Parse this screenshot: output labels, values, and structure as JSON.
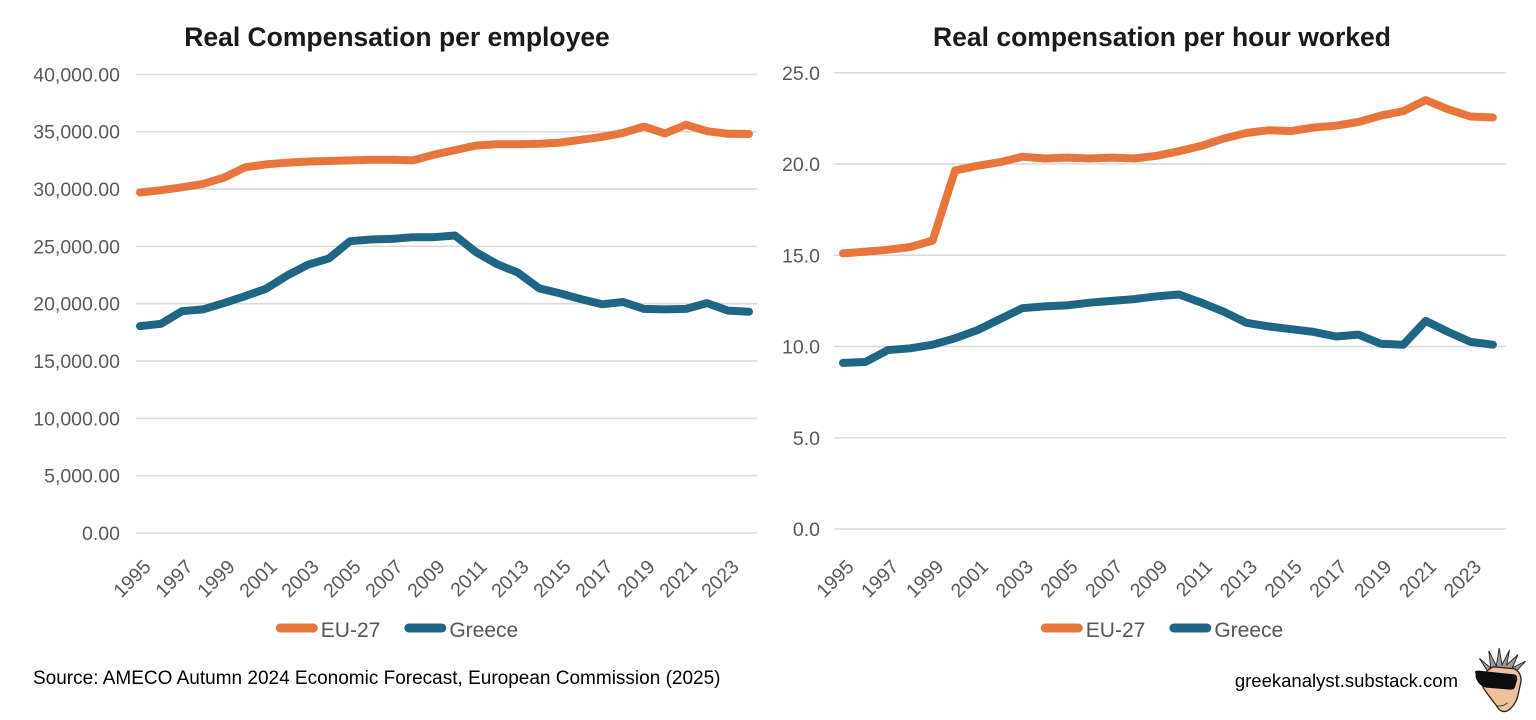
{
  "page": {
    "background": "#ffffff"
  },
  "colors": {
    "eu27": "#e8753b",
    "greece": "#1f6584",
    "gridline": "#d9d9d9",
    "axis_label": "#595959",
    "title": "#1a1a1a",
    "legend_label": "#565656"
  },
  "chart_data": [
    {
      "type": "line",
      "title": "Real Compensation per employee",
      "x": [
        1995,
        1996,
        1997,
        1998,
        1999,
        2000,
        2001,
        2002,
        2003,
        2004,
        2005,
        2006,
        2007,
        2008,
        2009,
        2010,
        2011,
        2012,
        2013,
        2014,
        2015,
        2016,
        2017,
        2018,
        2019,
        2020,
        2021,
        2022,
        2023,
        2024
      ],
      "x_tick_labels": [
        "1995",
        "1997",
        "1999",
        "2001",
        "2003",
        "2005",
        "2007",
        "2009",
        "2011",
        "2013",
        "2015",
        "2017",
        "2019",
        "2021",
        "2023"
      ],
      "ylim": [
        0,
        40000
      ],
      "grid": true,
      "legend_position": "bottom-center",
      "y_ticks": [
        {
          "value": 0,
          "label": "0.00"
        },
        {
          "value": 5000,
          "label": "5,000.00"
        },
        {
          "value": 10000,
          "label": "10,000.00"
        },
        {
          "value": 15000,
          "label": "15,000.00"
        },
        {
          "value": 20000,
          "label": "20,000.00"
        },
        {
          "value": 25000,
          "label": "25,000.00"
        },
        {
          "value": 30000,
          "label": "30,000.00"
        },
        {
          "value": 35000,
          "label": "35,000.00"
        },
        {
          "value": 40000,
          "label": "40,000.00"
        }
      ],
      "series": [
        {
          "name": "EU-27",
          "color": "#e8753b",
          "values": [
            29700,
            29900,
            30150,
            30450,
            31000,
            31900,
            32150,
            32300,
            32400,
            32450,
            32500,
            32550,
            32550,
            32500,
            33000,
            33400,
            33800,
            33900,
            33900,
            33950,
            34050,
            34300,
            34550,
            34900,
            35450,
            34850,
            35600,
            35050,
            34820,
            34800
          ]
        },
        {
          "name": "Greece",
          "color": "#1f6584",
          "values": [
            18050,
            18250,
            19350,
            19500,
            20050,
            20650,
            21300,
            22450,
            23400,
            23950,
            25450,
            25600,
            25650,
            25800,
            25800,
            25950,
            24500,
            23450,
            22700,
            21350,
            20900,
            20400,
            19950,
            20150,
            19550,
            19500,
            19550,
            20050,
            19400,
            19300
          ]
        }
      ]
    },
    {
      "type": "line",
      "title": "Real compensation per hour worked",
      "x": [
        1995,
        1996,
        1997,
        1998,
        1999,
        2000,
        2001,
        2002,
        2003,
        2004,
        2005,
        2006,
        2007,
        2008,
        2009,
        2010,
        2011,
        2012,
        2013,
        2014,
        2015,
        2016,
        2017,
        2018,
        2019,
        2020,
        2021,
        2022,
        2023,
        2024
      ],
      "x_tick_labels": [
        "1995",
        "1997",
        "1999",
        "2001",
        "2003",
        "2005",
        "2007",
        "2009",
        "2011",
        "2013",
        "2015",
        "2017",
        "2019",
        "2021",
        "2023"
      ],
      "ylim": [
        0,
        25
      ],
      "grid": true,
      "legend_position": "bottom-center",
      "y_ticks": [
        {
          "value": 0,
          "label": "0.0"
        },
        {
          "value": 5,
          "label": "5.0"
        },
        {
          "value": 10,
          "label": "10.0"
        },
        {
          "value": 15,
          "label": "15.0"
        },
        {
          "value": 20,
          "label": "20.0"
        },
        {
          "value": 25,
          "label": "25.0"
        }
      ],
      "series": [
        {
          "name": "EU-27",
          "color": "#e8753b",
          "values": [
            15.1,
            15.2,
            15.3,
            15.45,
            15.8,
            19.65,
            19.9,
            20.1,
            20.4,
            20.3,
            20.35,
            20.3,
            20.35,
            20.3,
            20.45,
            20.7,
            21.0,
            21.4,
            21.7,
            21.85,
            21.8,
            22.0,
            22.1,
            22.3,
            22.65,
            22.9,
            23.5,
            23.0,
            22.6,
            22.55
          ]
        },
        {
          "name": "Greece",
          "color": "#1f6584",
          "values": [
            9.1,
            9.15,
            9.8,
            9.9,
            10.1,
            10.45,
            10.9,
            11.5,
            12.1,
            12.2,
            12.25,
            12.4,
            12.5,
            12.6,
            12.75,
            12.85,
            12.4,
            11.9,
            11.3,
            11.1,
            10.95,
            10.8,
            10.55,
            10.65,
            10.15,
            10.1,
            11.4,
            10.8,
            10.25,
            10.1
          ]
        }
      ]
    }
  ],
  "footer": {
    "source": "Source: AMECO Autumn 2024 Economic Forecast, European Commission (2025)",
    "site": "greekanalyst.substack.com"
  },
  "logo": {
    "name": "greekanalyst-head-logo",
    "hair_color": "#9b9b9b",
    "face_color": "#eec29d",
    "glasses_color": "#0d0d0d",
    "outline_color": "#2b2419"
  }
}
